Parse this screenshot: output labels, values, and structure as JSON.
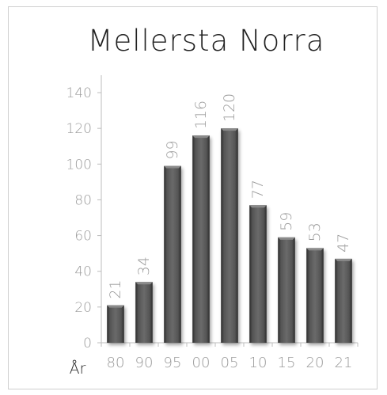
{
  "chart_data": {
    "type": "bar",
    "title": "Mellersta Norra",
    "xlabel": "År",
    "ylabel": "",
    "categories": [
      "80",
      "90",
      "95",
      "00",
      "05",
      "10",
      "15",
      "20",
      "21"
    ],
    "values": [
      21,
      34,
      99,
      116,
      120,
      77,
      59,
      53,
      47
    ],
    "yticks": [
      "0",
      "20",
      "40",
      "60",
      "80",
      "100",
      "120",
      "140"
    ],
    "ylim": [
      0,
      140
    ],
    "grid": false,
    "legend": "none",
    "bar_color": "#4a4a4a"
  }
}
